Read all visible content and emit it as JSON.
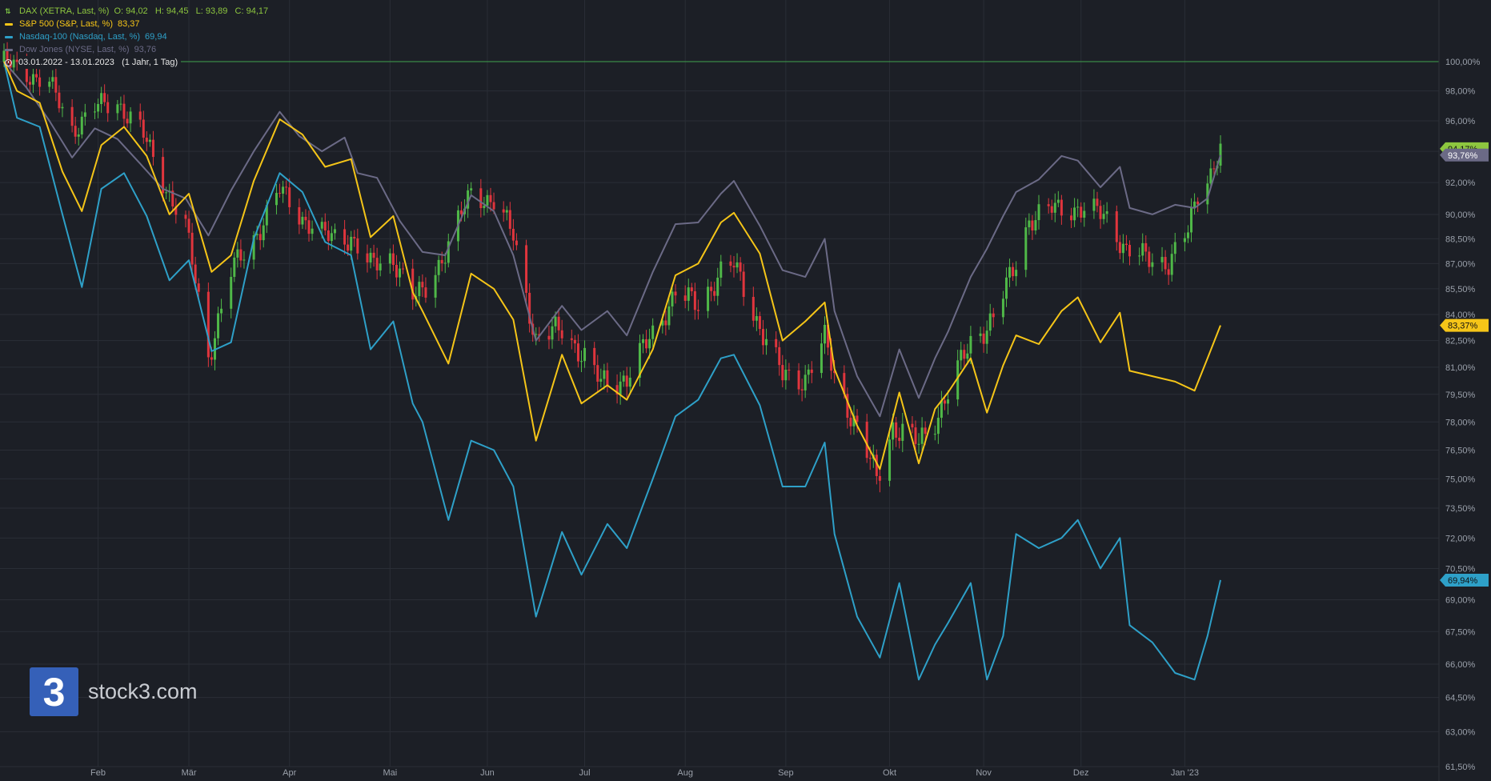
{
  "legend": [
    {
      "name": "DAX (XETRA, Last, %)",
      "ohlc": "O: 94,02   H: 94,45   L: 93,89   C: 94,17",
      "color": "#8dc63f",
      "icon": "ohlc-bars-icon"
    },
    {
      "name": "S&P 500 (S&P, Last, %)",
      "value": "83,37",
      "color": "#f5c518",
      "icon": "line-icon"
    },
    {
      "name": "Nasdaq-100 (Nasdaq, Last, %)",
      "value": "69,94",
      "color": "#2ea0c8",
      "icon": "line-icon"
    },
    {
      "name": "Dow Jones (NYSE, Last, %)",
      "value": "93,76",
      "color": "#6b6a86",
      "icon": "line-icon"
    }
  ],
  "range": {
    "dates": "03.01.2022 - 13.01.2023",
    "period": "(1 Jahr, 1 Tag)"
  },
  "watermark": {
    "text": "stock3.com",
    "glyph": "3"
  },
  "colors": {
    "background": "#1c1f26",
    "grid": "#2a2e36",
    "baseline": "#3fa34d",
    "up": "#4fb848",
    "down": "#e0353d",
    "dax": "#8dc63f",
    "sp500": "#f5c518",
    "nasdaq": "#2ea0c8",
    "dow": "#6b6a86",
    "axis_text": "#9aa0aa"
  },
  "chart_data": {
    "type": "line",
    "title": "",
    "x_range": [
      "2022-01-03",
      "2023-01-13"
    ],
    "x_ticks": [
      "Feb",
      "Mär",
      "Apr",
      "Mai",
      "Jun",
      "Jul",
      "Aug",
      "Sep",
      "Okt",
      "Nov",
      "Dez",
      "Jan '23"
    ],
    "y_ticks": [
      "100,00%",
      "98,00%",
      "96,00%",
      "94,00%",
      "92,00%",
      "90,00%",
      "88,50%",
      "87,00%",
      "85,50%",
      "84,00%",
      "82,50%",
      "81,00%",
      "79,50%",
      "78,00%",
      "76,50%",
      "75,00%",
      "73,50%",
      "72,00%",
      "70,50%",
      "69,00%",
      "67,50%",
      "66,00%",
      "64,50%",
      "63,00%",
      "61,50%"
    ],
    "ylim": [
      61.5,
      100.0
    ],
    "log_scale": true,
    "grid": true,
    "reference_line": 100.0,
    "series": [
      {
        "name": "Dow Jones (NYSE, Last, %)",
        "key": "dow",
        "last_label": "93,76%",
        "points": [
          [
            "2022-01-03",
            100.0
          ],
          [
            "2022-01-10",
            98.2
          ],
          [
            "2022-01-17",
            96.0
          ],
          [
            "2022-01-24",
            93.6
          ],
          [
            "2022-01-31",
            95.5
          ],
          [
            "2022-02-07",
            94.8
          ],
          [
            "2022-02-14",
            93.2
          ],
          [
            "2022-02-21",
            91.6
          ],
          [
            "2022-02-28",
            91.0
          ],
          [
            "2022-03-07",
            88.7
          ],
          [
            "2022-03-14",
            91.5
          ],
          [
            "2022-03-21",
            94.0
          ],
          [
            "2022-03-29",
            96.6
          ],
          [
            "2022-04-04",
            95.0
          ],
          [
            "2022-04-11",
            94.0
          ],
          [
            "2022-04-18",
            94.9
          ],
          [
            "2022-04-22",
            92.6
          ],
          [
            "2022-04-28",
            92.3
          ],
          [
            "2022-05-05",
            89.6
          ],
          [
            "2022-05-12",
            87.7
          ],
          [
            "2022-05-19",
            87.5
          ],
          [
            "2022-05-27",
            91.2
          ],
          [
            "2022-06-03",
            90.2
          ],
          [
            "2022-06-09",
            87.5
          ],
          [
            "2022-06-16",
            82.5
          ],
          [
            "2022-06-24",
            84.5
          ],
          [
            "2022-06-30",
            83.1
          ],
          [
            "2022-07-08",
            84.2
          ],
          [
            "2022-07-14",
            82.8
          ],
          [
            "2022-07-22",
            86.5
          ],
          [
            "2022-07-29",
            89.4
          ],
          [
            "2022-08-05",
            89.5
          ],
          [
            "2022-08-12",
            91.3
          ],
          [
            "2022-08-16",
            92.1
          ],
          [
            "2022-08-24",
            89.3
          ],
          [
            "2022-08-31",
            86.6
          ],
          [
            "2022-09-07",
            86.2
          ],
          [
            "2022-09-13",
            88.5
          ],
          [
            "2022-09-16",
            84.2
          ],
          [
            "2022-09-23",
            80.5
          ],
          [
            "2022-09-30",
            78.3
          ],
          [
            "2022-10-06",
            82.0
          ],
          [
            "2022-10-12",
            79.3
          ],
          [
            "2022-10-17",
            81.5
          ],
          [
            "2022-10-21",
            83.0
          ],
          [
            "2022-10-28",
            86.2
          ],
          [
            "2022-11-02",
            87.9
          ],
          [
            "2022-11-07",
            89.9
          ],
          [
            "2022-11-11",
            91.4
          ],
          [
            "2022-11-18",
            92.2
          ],
          [
            "2022-11-25",
            93.7
          ],
          [
            "2022-11-30",
            93.4
          ],
          [
            "2022-12-07",
            91.7
          ],
          [
            "2022-12-13",
            93.0
          ],
          [
            "2022-12-16",
            90.4
          ],
          [
            "2022-12-23",
            90.0
          ],
          [
            "2022-12-30",
            90.6
          ],
          [
            "2023-01-05",
            90.4
          ],
          [
            "2023-01-09",
            91.0
          ],
          [
            "2023-01-13",
            93.76
          ]
        ]
      },
      {
        "name": "S&P 500 (S&P, Last, %)",
        "key": "sp500",
        "last_label": "83,37%",
        "points": [
          [
            "2022-01-03",
            100.0
          ],
          [
            "2022-01-07",
            98.0
          ],
          [
            "2022-01-14",
            97.2
          ],
          [
            "2022-01-21",
            92.7
          ],
          [
            "2022-01-27",
            90.2
          ],
          [
            "2022-02-02",
            94.4
          ],
          [
            "2022-02-09",
            95.6
          ],
          [
            "2022-02-16",
            93.7
          ],
          [
            "2022-02-23",
            90.0
          ],
          [
            "2022-03-01",
            91.3
          ],
          [
            "2022-03-08",
            86.5
          ],
          [
            "2022-03-14",
            87.5
          ],
          [
            "2022-03-21",
            92.1
          ],
          [
            "2022-03-29",
            96.1
          ],
          [
            "2022-04-05",
            95.1
          ],
          [
            "2022-04-12",
            93.0
          ],
          [
            "2022-04-20",
            93.5
          ],
          [
            "2022-04-26",
            88.6
          ],
          [
            "2022-05-03",
            89.9
          ],
          [
            "2022-05-09",
            85.3
          ],
          [
            "2022-05-12",
            84.2
          ],
          [
            "2022-05-20",
            81.2
          ],
          [
            "2022-05-27",
            86.4
          ],
          [
            "2022-06-03",
            85.5
          ],
          [
            "2022-06-09",
            83.7
          ],
          [
            "2022-06-16",
            77.0
          ],
          [
            "2022-06-24",
            81.7
          ],
          [
            "2022-06-30",
            79.0
          ],
          [
            "2022-07-08",
            80.0
          ],
          [
            "2022-07-14",
            79.2
          ],
          [
            "2022-07-22",
            82.0
          ],
          [
            "2022-07-29",
            86.3
          ],
          [
            "2022-08-05",
            87.0
          ],
          [
            "2022-08-12",
            89.5
          ],
          [
            "2022-08-16",
            90.1
          ],
          [
            "2022-08-24",
            87.6
          ],
          [
            "2022-08-31",
            82.5
          ],
          [
            "2022-09-07",
            83.6
          ],
          [
            "2022-09-13",
            84.7
          ],
          [
            "2022-09-16",
            80.9
          ],
          [
            "2022-09-23",
            77.8
          ],
          [
            "2022-09-30",
            75.5
          ],
          [
            "2022-10-06",
            79.6
          ],
          [
            "2022-10-12",
            75.8
          ],
          [
            "2022-10-17",
            78.7
          ],
          [
            "2022-10-21",
            79.6
          ],
          [
            "2022-10-28",
            81.5
          ],
          [
            "2022-11-02",
            78.5
          ],
          [
            "2022-11-07",
            81.1
          ],
          [
            "2022-11-11",
            82.8
          ],
          [
            "2022-11-18",
            82.3
          ],
          [
            "2022-11-25",
            84.2
          ],
          [
            "2022-11-30",
            85.0
          ],
          [
            "2022-12-07",
            82.4
          ],
          [
            "2022-12-13",
            84.1
          ],
          [
            "2022-12-16",
            80.8
          ],
          [
            "2022-12-23",
            80.5
          ],
          [
            "2022-12-30",
            80.2
          ],
          [
            "2023-01-05",
            79.7
          ],
          [
            "2023-01-09",
            81.5
          ],
          [
            "2023-01-13",
            83.37
          ]
        ]
      },
      {
        "name": "Nasdaq-100 (Nasdaq, Last, %)",
        "key": "nasdaq",
        "last_label": "69,94%",
        "points": [
          [
            "2022-01-03",
            100.0
          ],
          [
            "2022-01-07",
            96.2
          ],
          [
            "2022-01-14",
            95.6
          ],
          [
            "2022-01-21",
            90.0
          ],
          [
            "2022-01-27",
            85.6
          ],
          [
            "2022-02-02",
            91.6
          ],
          [
            "2022-02-09",
            92.6
          ],
          [
            "2022-02-16",
            89.9
          ],
          [
            "2022-02-23",
            86.0
          ],
          [
            "2022-03-01",
            87.2
          ],
          [
            "2022-03-08",
            81.9
          ],
          [
            "2022-03-14",
            82.4
          ],
          [
            "2022-03-21",
            88.5
          ],
          [
            "2022-03-29",
            92.6
          ],
          [
            "2022-04-05",
            91.4
          ],
          [
            "2022-04-12",
            88.3
          ],
          [
            "2022-04-20",
            87.5
          ],
          [
            "2022-04-26",
            82.0
          ],
          [
            "2022-05-03",
            83.6
          ],
          [
            "2022-05-09",
            79.0
          ],
          [
            "2022-05-12",
            78.0
          ],
          [
            "2022-05-20",
            72.9
          ],
          [
            "2022-05-27",
            77.0
          ],
          [
            "2022-06-03",
            76.5
          ],
          [
            "2022-06-09",
            74.6
          ],
          [
            "2022-06-16",
            68.2
          ],
          [
            "2022-06-24",
            72.3
          ],
          [
            "2022-06-30",
            70.2
          ],
          [
            "2022-07-08",
            72.7
          ],
          [
            "2022-07-14",
            71.5
          ],
          [
            "2022-07-22",
            75.0
          ],
          [
            "2022-07-29",
            78.3
          ],
          [
            "2022-08-05",
            79.2
          ],
          [
            "2022-08-12",
            81.5
          ],
          [
            "2022-08-16",
            81.7
          ],
          [
            "2022-08-24",
            78.9
          ],
          [
            "2022-08-31",
            74.6
          ],
          [
            "2022-09-07",
            74.6
          ],
          [
            "2022-09-13",
            76.9
          ],
          [
            "2022-09-16",
            72.2
          ],
          [
            "2022-09-23",
            68.2
          ],
          [
            "2022-09-30",
            66.3
          ],
          [
            "2022-10-06",
            69.8
          ],
          [
            "2022-10-12",
            65.3
          ],
          [
            "2022-10-17",
            66.9
          ],
          [
            "2022-10-21",
            67.9
          ],
          [
            "2022-10-28",
            69.8
          ],
          [
            "2022-11-02",
            65.3
          ],
          [
            "2022-11-07",
            67.3
          ],
          [
            "2022-11-11",
            72.2
          ],
          [
            "2022-11-18",
            71.5
          ],
          [
            "2022-11-25",
            72.0
          ],
          [
            "2022-11-30",
            72.9
          ],
          [
            "2022-12-07",
            70.5
          ],
          [
            "2022-12-13",
            72.0
          ],
          [
            "2022-12-16",
            67.8
          ],
          [
            "2022-12-23",
            67.0
          ],
          [
            "2022-12-30",
            65.6
          ],
          [
            "2023-01-05",
            65.3
          ],
          [
            "2023-01-09",
            67.3
          ],
          [
            "2023-01-13",
            69.94
          ]
        ]
      },
      {
        "name": "DAX (XETRA, Last, %)",
        "key": "dax",
        "type": "ohlc",
        "last_label": "94,17%",
        "points": [
          [
            "2022-01-03",
            100.0
          ],
          [
            "2022-01-10",
            99.2
          ],
          [
            "2022-01-17",
            98.5
          ],
          [
            "2022-01-24",
            95.4
          ],
          [
            "2022-01-31",
            96.9
          ],
          [
            "2022-02-07",
            97.2
          ],
          [
            "2022-02-14",
            95.5
          ],
          [
            "2022-02-21",
            92.1
          ],
          [
            "2022-02-28",
            89.2
          ],
          [
            "2022-03-07",
            81.6
          ],
          [
            "2022-03-14",
            86.5
          ],
          [
            "2022-03-21",
            88.5
          ],
          [
            "2022-03-29",
            91.5
          ],
          [
            "2022-04-05",
            89.8
          ],
          [
            "2022-04-12",
            88.6
          ],
          [
            "2022-04-20",
            88.6
          ],
          [
            "2022-04-26",
            86.8
          ],
          [
            "2022-05-03",
            87.4
          ],
          [
            "2022-05-09",
            85.0
          ],
          [
            "2022-05-12",
            85.2
          ],
          [
            "2022-05-20",
            88.1
          ],
          [
            "2022-05-27",
            91.4
          ],
          [
            "2022-06-03",
            90.8
          ],
          [
            "2022-06-09",
            88.7
          ],
          [
            "2022-06-16",
            82.5
          ],
          [
            "2022-06-24",
            83.2
          ],
          [
            "2022-06-30",
            81.8
          ],
          [
            "2022-07-06",
            80.1
          ],
          [
            "2022-07-14",
            80.4
          ],
          [
            "2022-07-22",
            82.9
          ],
          [
            "2022-07-29",
            85.3
          ],
          [
            "2022-08-05",
            84.5
          ],
          [
            "2022-08-12",
            86.5
          ],
          [
            "2022-08-16",
            86.9
          ],
          [
            "2022-08-24",
            83.3
          ],
          [
            "2022-08-31",
            80.5
          ],
          [
            "2022-09-07",
            80.4
          ],
          [
            "2022-09-13",
            82.5
          ],
          [
            "2022-09-16",
            80.6
          ],
          [
            "2022-09-23",
            77.6
          ],
          [
            "2022-09-29",
            75.0
          ],
          [
            "2022-10-04",
            77.8
          ],
          [
            "2022-10-12",
            76.8
          ],
          [
            "2022-10-17",
            78.2
          ],
          [
            "2022-10-21",
            79.6
          ],
          [
            "2022-10-28",
            82.4
          ],
          [
            "2022-11-04",
            83.8
          ],
          [
            "2022-11-10",
            86.5
          ],
          [
            "2022-11-15",
            89.7
          ],
          [
            "2022-11-22",
            90.3
          ],
          [
            "2022-11-30",
            90.4
          ],
          [
            "2022-12-06",
            90.1
          ],
          [
            "2022-12-09",
            89.8
          ],
          [
            "2022-12-15",
            87.8
          ],
          [
            "2022-12-21",
            87.3
          ],
          [
            "2022-12-28",
            87.1
          ],
          [
            "2023-01-03",
            88.9
          ],
          [
            "2023-01-06",
            91.3
          ],
          [
            "2023-01-10",
            92.7
          ],
          [
            "2023-01-13",
            94.17
          ]
        ]
      }
    ]
  }
}
